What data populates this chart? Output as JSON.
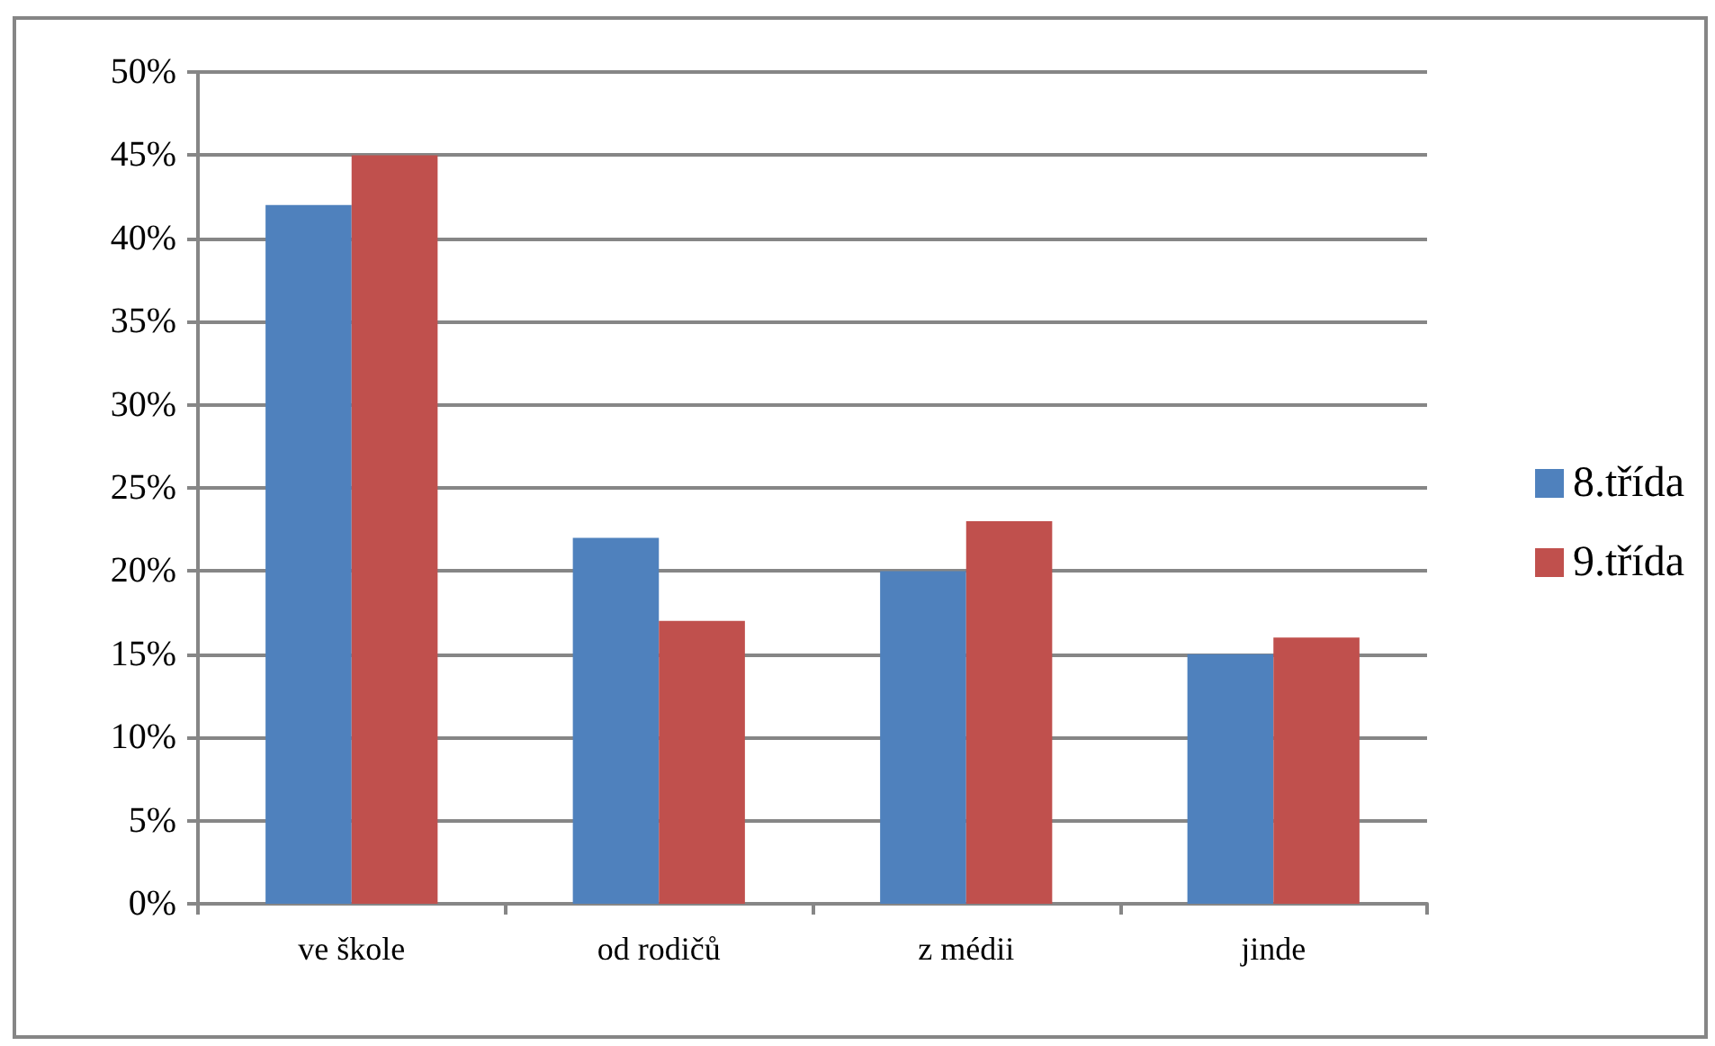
{
  "chart_data": {
    "type": "bar",
    "categories": [
      "ve škole",
      "od rodičů",
      "z médii",
      "jinde"
    ],
    "series": [
      {
        "name": "8.třída",
        "color": "#4f81bd",
        "values": [
          42,
          22,
          20,
          15
        ]
      },
      {
        "name": "9.třída",
        "color": "#c0504d",
        "values": [
          45,
          17,
          23,
          16
        ]
      }
    ],
    "ylim": [
      0,
      50
    ],
    "yticks": [
      {
        "value": 0,
        "label": "0%"
      },
      {
        "value": 5,
        "label": "5%"
      },
      {
        "value": 10,
        "label": "10%"
      },
      {
        "value": 15,
        "label": "15%"
      },
      {
        "value": 20,
        "label": "20%"
      },
      {
        "value": 25,
        "label": "25%"
      },
      {
        "value": 30,
        "label": "30%"
      },
      {
        "value": 35,
        "label": "35%"
      },
      {
        "value": 40,
        "label": "40%"
      },
      {
        "value": 45,
        "label": "45%"
      },
      {
        "value": 50,
        "label": "50%"
      }
    ],
    "grid": "y",
    "legend": "right"
  }
}
